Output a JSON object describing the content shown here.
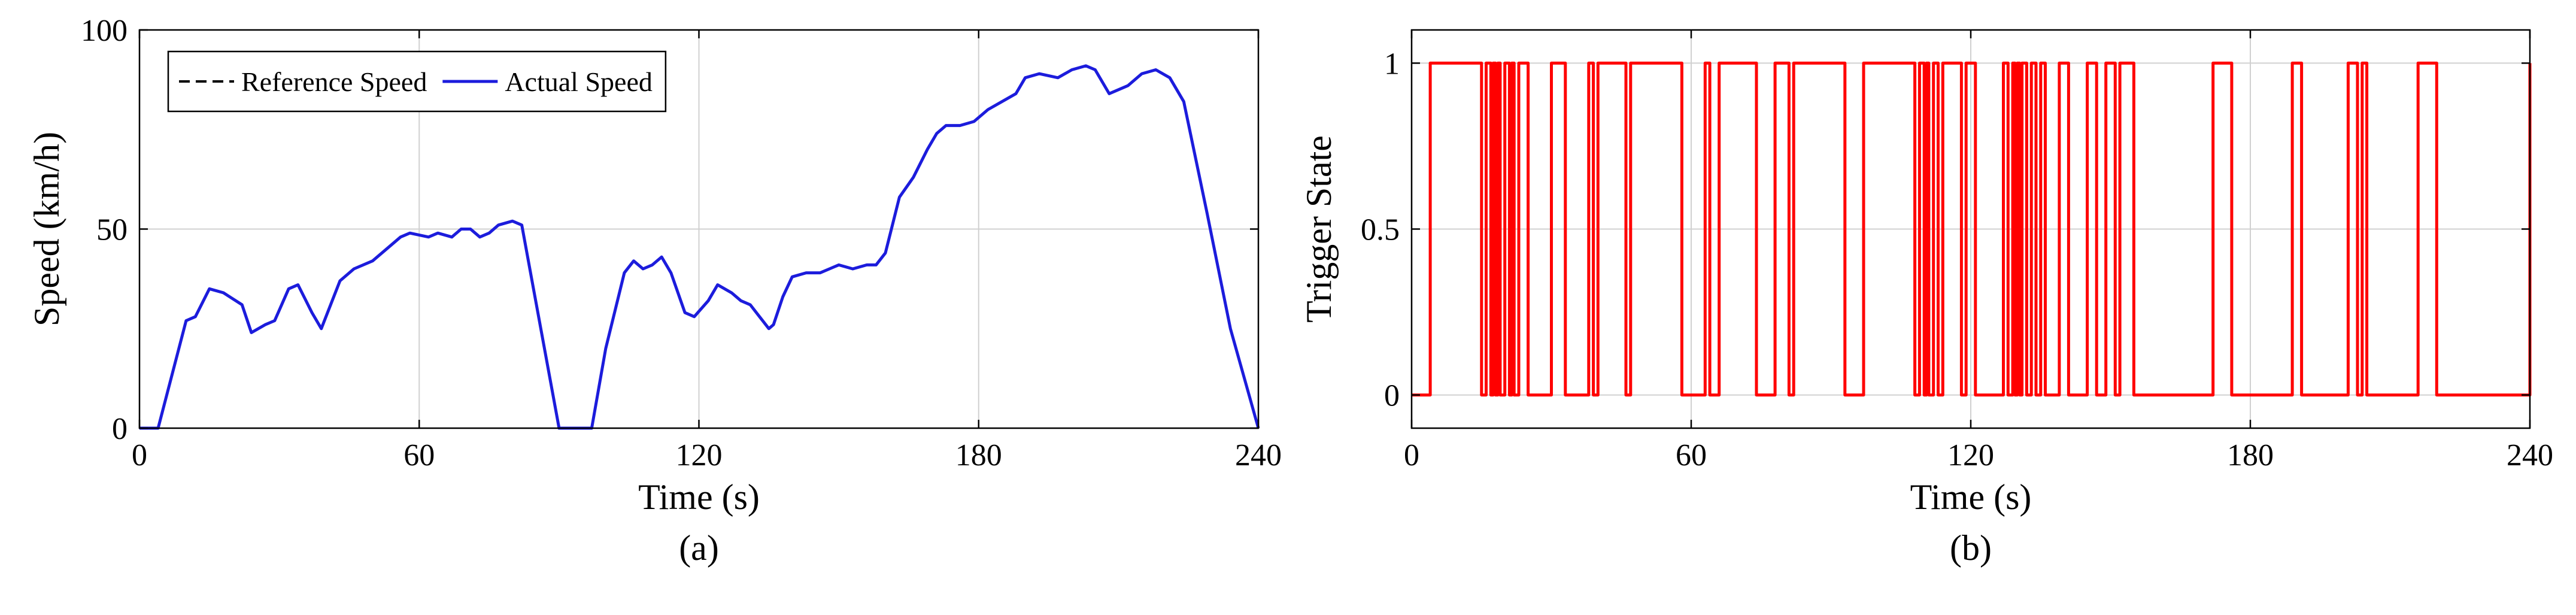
{
  "chart_data": [
    {
      "type": "line",
      "caption": "(a)",
      "xlabel": "Time (s)",
      "ylabel": "Speed (km/h)",
      "xlim": [
        0,
        240
      ],
      "ylim": [
        0,
        100
      ],
      "xticks": [
        0,
        60,
        120,
        180,
        240
      ],
      "yticks": [
        0,
        50,
        100
      ],
      "grid": true,
      "legend": {
        "position": "top-left",
        "entries": [
          "Reference Speed",
          "Actual Speed"
        ],
        "orientation": "horizontal",
        "boxed": true
      },
      "series": [
        {
          "name": "Reference Speed",
          "color": "#000000",
          "dash": true,
          "x": [
            0,
            4,
            10,
            12,
            15,
            18,
            22,
            24,
            27,
            29,
            32,
            34,
            37,
            39,
            43,
            46,
            50,
            53,
            56,
            58,
            62,
            64,
            67,
            69,
            71,
            73,
            75,
            77,
            80,
            82,
            90,
            94,
            97,
            100,
            104,
            106,
            108,
            110,
            112,
            114,
            117,
            119,
            122,
            124,
            127,
            129,
            131,
            133,
            135,
            136,
            138,
            140,
            143,
            146,
            148,
            150,
            153,
            156,
            158,
            160,
            163,
            166,
            169,
            171,
            173,
            176,
            179,
            182,
            185,
            188,
            190,
            193,
            197,
            200,
            203,
            205,
            208,
            212,
            215,
            218,
            221,
            224,
            229,
            234,
            240
          ],
          "y": [
            0,
            0,
            27,
            28,
            35,
            34,
            31,
            24,
            26,
            27,
            35,
            36,
            29,
            25,
            37,
            40,
            42,
            45,
            48,
            49,
            48,
            49,
            48,
            50,
            50,
            48,
            49,
            51,
            52,
            51,
            0,
            0,
            0,
            20,
            39,
            42,
            40,
            41,
            43,
            39,
            29,
            28,
            32,
            36,
            34,
            32,
            31,
            28,
            25,
            26,
            33,
            38,
            39,
            39,
            40,
            41,
            40,
            41,
            41,
            44,
            58,
            63,
            70,
            74,
            76,
            76,
            77,
            80,
            82,
            84,
            88,
            89,
            88,
            90,
            91,
            90,
            84,
            86,
            89,
            90,
            88,
            82,
            54,
            25,
            0
          ]
        },
        {
          "name": "Actual Speed",
          "color": "#1c1cdc",
          "dash": false,
          "x": [
            0,
            4,
            10,
            12,
            15,
            18,
            22,
            24,
            27,
            29,
            32,
            34,
            37,
            39,
            43,
            46,
            50,
            53,
            56,
            58,
            62,
            64,
            67,
            69,
            71,
            73,
            75,
            77,
            80,
            82,
            90,
            94,
            97,
            100,
            104,
            106,
            108,
            110,
            112,
            114,
            117,
            119,
            122,
            124,
            127,
            129,
            131,
            133,
            135,
            136,
            138,
            140,
            143,
            146,
            148,
            150,
            153,
            156,
            158,
            160,
            163,
            166,
            169,
            171,
            173,
            176,
            179,
            182,
            185,
            188,
            190,
            193,
            197,
            200,
            203,
            205,
            208,
            212,
            215,
            218,
            221,
            224,
            229,
            234,
            240
          ],
          "y": [
            0,
            0,
            27,
            28,
            35,
            34,
            31,
            24,
            26,
            27,
            35,
            36,
            29,
            25,
            37,
            40,
            42,
            45,
            48,
            49,
            48,
            49,
            48,
            50,
            50,
            48,
            49,
            51,
            52,
            51,
            0,
            0,
            0,
            20,
            39,
            42,
            40,
            41,
            43,
            39,
            29,
            28,
            32,
            36,
            34,
            32,
            31,
            28,
            25,
            26,
            33,
            38,
            39,
            39,
            40,
            41,
            40,
            41,
            41,
            44,
            58,
            63,
            70,
            74,
            76,
            76,
            77,
            80,
            82,
            84,
            88,
            89,
            88,
            90,
            91,
            90,
            84,
            86,
            89,
            90,
            88,
            82,
            54,
            25,
            0
          ]
        }
      ]
    },
    {
      "type": "line",
      "caption": "(b)",
      "xlabel": "Time (s)",
      "ylabel": "Trigger State",
      "xlim": [
        0,
        240
      ],
      "ylim": [
        -0.1,
        1.1
      ],
      "xticks": [
        0,
        60,
        120,
        180,
        240
      ],
      "yticks": [
        0,
        0.5,
        1
      ],
      "grid": true,
      "series": [
        {
          "color": "#ff0000",
          "step": true,
          "x": [
            0,
            4,
            15,
            16,
            17,
            17.5,
            18,
            18.5,
            19,
            20,
            21,
            21.5,
            22,
            23,
            25,
            30,
            33,
            38,
            39,
            40,
            46,
            47,
            58,
            63,
            64,
            66,
            74,
            78,
            81,
            82,
            93,
            97,
            108,
            109,
            110,
            110.5,
            111,
            112,
            113,
            114,
            118,
            119,
            121,
            127,
            128,
            129,
            129.5,
            130,
            130.5,
            131,
            132,
            133,
            134,
            135,
            136,
            139,
            141,
            145,
            147,
            149,
            151,
            152,
            155,
            172,
            176,
            189,
            191,
            201,
            203,
            204,
            205,
            216,
            220,
            240
          ],
          "y": [
            0,
            1,
            0,
            1,
            0,
            1,
            0,
            1,
            0,
            1,
            0,
            1,
            0,
            1,
            0,
            1,
            0,
            1,
            0,
            1,
            0,
            1,
            0,
            1,
            0,
            1,
            0,
            1,
            0,
            1,
            0,
            1,
            0,
            1,
            0,
            1,
            0,
            1,
            0,
            1,
            0,
            1,
            0,
            1,
            0,
            1,
            0,
            1,
            0,
            1,
            0,
            1,
            0,
            1,
            0,
            1,
            0,
            1,
            0,
            1,
            0,
            1,
            0,
            1,
            0,
            1,
            0,
            1,
            0,
            1,
            0,
            1,
            0,
            1
          ]
        }
      ]
    }
  ]
}
